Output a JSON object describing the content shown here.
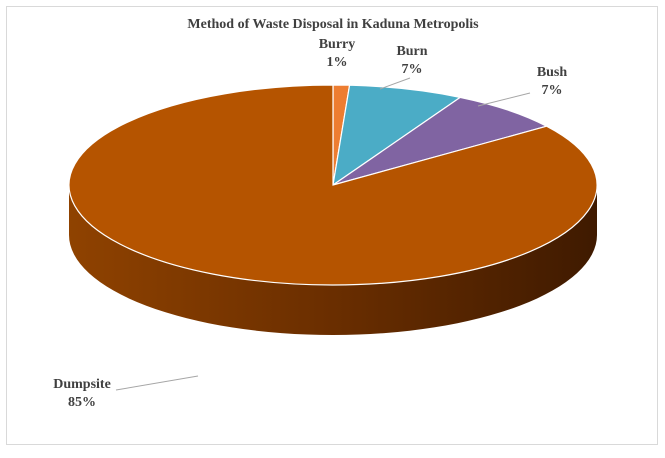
{
  "chart_data": {
    "type": "pie",
    "title": "Method of Waste Disposal in Kaduna Metropolis",
    "categories": [
      "Burry",
      "Burn",
      "Bush",
      "Dumpsite"
    ],
    "values": [
      1,
      7,
      7,
      85
    ],
    "value_labels": [
      "1%",
      "7%",
      "7%",
      "85%"
    ],
    "colors": [
      "#ed7d31",
      "#4bacc6",
      "#8064a2",
      "#b55400"
    ]
  }
}
